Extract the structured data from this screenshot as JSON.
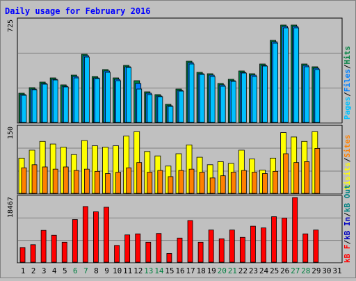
{
  "colors": {
    "background": "#C0C0C0",
    "plot_background": "#C0C0C0",
    "title": "#0000FF",
    "grid": "#808080",
    "pages": "#00C0FF",
    "pages_shadow": "#004050",
    "files": "#0080FF",
    "hits": "#008040",
    "visits": "#FFFF00",
    "sites": "#FF8000",
    "kb_in": "#0000C0",
    "kb_out": "#008080",
    "kb_f": "#FF0000",
    "weekend_day": "#008040",
    "weekday": "#000000"
  },
  "chart_data": [
    {
      "type": "bar",
      "title": "Daily usage for February 2016",
      "panel": "top",
      "ymax_label": "725",
      "ylim": [
        0,
        725
      ],
      "categories": [
        "1",
        "2",
        "3",
        "4",
        "5",
        "6",
        "7",
        "8",
        "9",
        "10",
        "11",
        "12",
        "13",
        "14",
        "15",
        "16",
        "17",
        "18",
        "19",
        "20",
        "21",
        "22",
        "23",
        "24",
        "25",
        "26",
        "27",
        "28",
        "29",
        "30",
        "31"
      ],
      "legend": [
        "Pages",
        "/",
        "Files",
        "/",
        "Hits"
      ],
      "series": [
        {
          "name": "Hits",
          "values": [
            210,
            250,
            290,
            320,
            270,
            340,
            490,
            330,
            380,
            320,
            410,
            300,
            220,
            200,
            130,
            240,
            440,
            360,
            350,
            280,
            310,
            370,
            350,
            420,
            590,
            700,
            700,
            420,
            400,
            null,
            null
          ]
        },
        {
          "name": "Files",
          "values": [
            200,
            240,
            280,
            310,
            260,
            330,
            480,
            320,
            370,
            310,
            400,
            280,
            210,
            190,
            120,
            230,
            430,
            350,
            340,
            270,
            300,
            360,
            340,
            410,
            580,
            690,
            690,
            410,
            390,
            null,
            null
          ]
        },
        {
          "name": "Pages",
          "values": [
            195,
            235,
            275,
            305,
            255,
            320,
            470,
            315,
            360,
            300,
            395,
            240,
            200,
            185,
            115,
            225,
            420,
            345,
            330,
            260,
            295,
            355,
            330,
            405,
            570,
            680,
            680,
            400,
            380,
            null,
            null
          ]
        }
      ]
    },
    {
      "type": "bar",
      "panel": "middle",
      "ymax_label": "150",
      "ylim": [
        0,
        150
      ],
      "categories": [
        "1",
        "2",
        "3",
        "4",
        "5",
        "6",
        "7",
        "8",
        "9",
        "10",
        "11",
        "12",
        "13",
        "14",
        "15",
        "16",
        "17",
        "18",
        "19",
        "20",
        "21",
        "22",
        "23",
        "24",
        "25",
        "26",
        "27",
        "28",
        "29",
        "30",
        "31"
      ],
      "legend": [
        "Visits",
        "/",
        "Sites"
      ],
      "series": [
        {
          "name": "Visits",
          "values": [
            80,
            98,
            118,
            112,
            105,
            88,
            120,
            108,
            105,
            108,
            130,
            140,
            95,
            85,
            62,
            90,
            110,
            82,
            65,
            72,
            68,
            98,
            78,
            53,
            80,
            138,
            128,
            118,
            140,
            null,
            null
          ]
        },
        {
          "name": "Sites",
          "values": [
            58,
            65,
            60,
            55,
            60,
            52,
            55,
            50,
            45,
            48,
            58,
            70,
            48,
            52,
            38,
            52,
            55,
            48,
            35,
            40,
            48,
            52,
            48,
            45,
            50,
            90,
            70,
            72,
            102,
            null,
            null
          ]
        }
      ]
    },
    {
      "type": "bar",
      "panel": "bottom",
      "ymax_label": "18467",
      "ylim": [
        0,
        18467
      ],
      "categories": [
        "1",
        "2",
        "3",
        "4",
        "5",
        "6",
        "7",
        "8",
        "9",
        "10",
        "11",
        "12",
        "13",
        "14",
        "15",
        "16",
        "17",
        "18",
        "19",
        "20",
        "21",
        "22",
        "23",
        "24",
        "25",
        "26",
        "27",
        "28",
        "29",
        "30",
        "31"
      ],
      "legend": [
        "kB F",
        "/",
        "kB In",
        "/",
        "kB Out"
      ],
      "series": [
        {
          "name": "kB F",
          "values": [
            4200,
            5000,
            9100,
            7700,
            5700,
            12200,
            15900,
            14400,
            15700,
            4800,
            7800,
            8100,
            5700,
            8200,
            2500,
            6900,
            11900,
            5700,
            9200,
            6700,
            9200,
            7100,
            10300,
            9800,
            13000,
            12600,
            18467,
            8100,
            9200,
            null,
            null
          ]
        }
      ]
    }
  ],
  "weekend_days": [
    "6",
    "7",
    "13",
    "14",
    "20",
    "21",
    "27",
    "28"
  ]
}
